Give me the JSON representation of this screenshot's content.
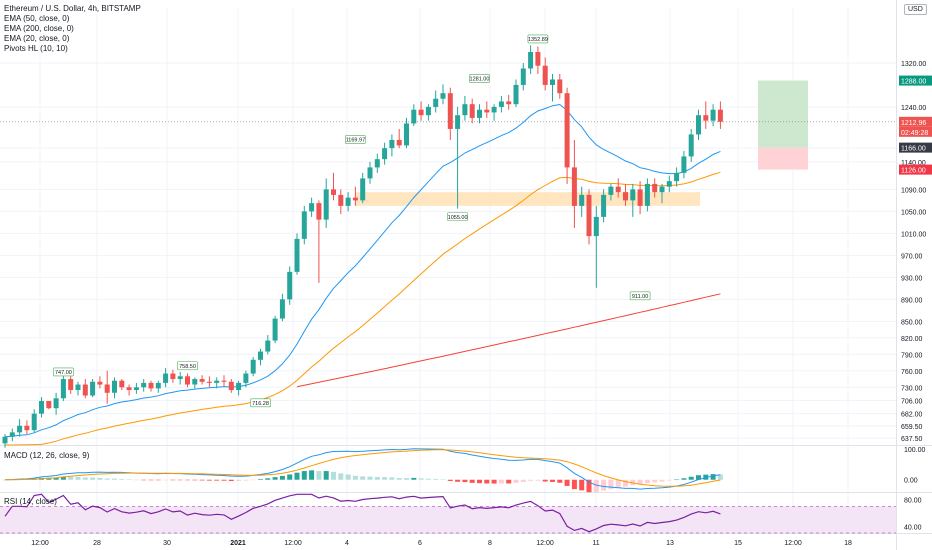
{
  "header": {
    "title": "Ethereum / U.S. Dollar, 4h, BITSTAMP",
    "indicators": [
      "EMA (50, close, 0)",
      "EMA (200, close, 0)",
      "EMA (20, close, 0)",
      "Pivots HL (10, 10)"
    ],
    "currency": "USD"
  },
  "panes": {
    "macd_title": "MACD (12, 26, close, 9)",
    "rsi_title": "RSI (14, close)"
  },
  "colors": {
    "up": "#26a69a",
    "down": "#ef5350",
    "ema20": "#2196f3",
    "ema50": "#ff9800",
    "ema200": "#f44336",
    "macd": "#2196f3",
    "signal": "#ff9800",
    "rsi": "#7b1fa2",
    "rsi_band": "#f3e5f5",
    "pivot_bg": "#ffffff",
    "target": "#c8e6c9",
    "stop": "#ffcdd2",
    "zone": "#ffe0b2"
  },
  "chart_data": {
    "type": "candlestick",
    "x_tick_labels": [
      "12:00",
      "28",
      "30",
      "2021",
      "12:00",
      "4",
      "6",
      "8",
      "12:00",
      "11",
      "13",
      "15",
      "12:00",
      "18"
    ],
    "y_tick_labels": [
      "1320.00",
      "1240.00",
      "1165.00",
      "1140.00",
      "1090.00",
      "1050.00",
      "1010.00",
      "970.00",
      "930.00",
      "890.00",
      "850.00",
      "820.00",
      "790.00",
      "760.00",
      "730.00",
      "706.00",
      "682.00",
      "659.50",
      "637.50"
    ],
    "ylim": [
      625,
      1420
    ],
    "price_labels": {
      "last": "1212.96",
      "countdown": "02:49:28",
      "target": "1288.00",
      "entry": "1166.00",
      "stop": "1126.00"
    },
    "pivot_labels": [
      {
        "label": "747.00",
        "value": 747
      },
      {
        "label": "758.50",
        "value": 758.5
      },
      {
        "label": "716.28",
        "value": 716.28
      },
      {
        "label": "1169.97",
        "value": 1169.97
      },
      {
        "label": "1281.00",
        "value": 1281
      },
      {
        "label": "1055.00",
        "value": 1055
      },
      {
        "label": "1352.89",
        "value": 1352.89
      },
      {
        "label": "911.00",
        "value": 911
      }
    ],
    "trade": {
      "target": 1288,
      "entry": 1166,
      "stop": 1126
    },
    "zone": {
      "low": 1060,
      "high": 1085
    },
    "candles": [
      [
        628,
        645,
        620,
        640
      ],
      [
        640,
        655,
        632,
        648
      ],
      [
        648,
        672,
        640,
        660
      ],
      [
        660,
        670,
        645,
        652
      ],
      [
        652,
        690,
        648,
        682
      ],
      [
        682,
        712,
        675,
        705
      ],
      [
        705,
        700,
        690,
        692
      ],
      [
        692,
        720,
        680,
        710
      ],
      [
        710,
        760,
        705,
        745
      ],
      [
        745,
        755,
        718,
        725
      ],
      [
        725,
        740,
        715,
        735
      ],
      [
        735,
        745,
        710,
        715
      ],
      [
        715,
        745,
        712,
        740
      ],
      [
        740,
        750,
        728,
        735
      ],
      [
        735,
        760,
        700,
        720
      ],
      [
        720,
        748,
        710,
        742
      ],
      [
        742,
        745,
        725,
        730
      ],
      [
        730,
        735,
        715,
        725
      ],
      [
        725,
        738,
        718,
        730
      ],
      [
        730,
        745,
        722,
        738
      ],
      [
        738,
        742,
        722,
        728
      ],
      [
        728,
        742,
        720,
        738
      ],
      [
        738,
        765,
        730,
        755
      ],
      [
        755,
        762,
        738,
        745
      ],
      [
        745,
        758,
        735,
        750
      ],
      [
        750,
        755,
        730,
        735
      ],
      [
        735,
        748,
        728,
        745
      ],
      [
        745,
        752,
        735,
        740
      ],
      [
        740,
        750,
        730,
        738
      ],
      [
        738,
        748,
        728,
        742
      ],
      [
        742,
        752,
        732,
        740
      ],
      [
        740,
        745,
        720,
        725
      ],
      [
        725,
        742,
        715,
        738
      ],
      [
        738,
        760,
        730,
        755
      ],
      [
        755,
        785,
        750,
        780
      ],
      [
        780,
        800,
        770,
        795
      ],
      [
        795,
        825,
        790,
        815
      ],
      [
        815,
        860,
        810,
        855
      ],
      [
        855,
        900,
        850,
        890
      ],
      [
        890,
        950,
        880,
        940
      ],
      [
        940,
        1010,
        935,
        1000
      ],
      [
        1000,
        1060,
        990,
        1050
      ],
      [
        1050,
        1075,
        1040,
        1065
      ],
      [
        1065,
        1070,
        920,
        1035
      ],
      [
        1035,
        1110,
        1020,
        1090
      ],
      [
        1090,
        1120,
        1070,
        1080
      ],
      [
        1080,
        1090,
        1045,
        1060
      ],
      [
        1060,
        1085,
        1050,
        1075
      ],
      [
        1075,
        1095,
        1060,
        1070
      ],
      [
        1070,
        1120,
        1065,
        1110
      ],
      [
        1110,
        1140,
        1100,
        1130
      ],
      [
        1130,
        1155,
        1120,
        1145
      ],
      [
        1145,
        1175,
        1135,
        1165
      ],
      [
        1165,
        1190,
        1150,
        1180
      ],
      [
        1180,
        1200,
        1165,
        1170
      ],
      [
        1170,
        1220,
        1165,
        1210
      ],
      [
        1210,
        1245,
        1205,
        1235
      ],
      [
        1235,
        1250,
        1215,
        1225
      ],
      [
        1225,
        1245,
        1215,
        1240
      ],
      [
        1240,
        1270,
        1230,
        1255
      ],
      [
        1255,
        1281,
        1245,
        1265
      ],
      [
        1265,
        1275,
        1180,
        1200
      ],
      [
        1200,
        1240,
        1055,
        1225
      ],
      [
        1225,
        1260,
        1215,
        1245
      ],
      [
        1245,
        1255,
        1210,
        1220
      ],
      [
        1220,
        1245,
        1210,
        1235
      ],
      [
        1235,
        1250,
        1220,
        1230
      ],
      [
        1230,
        1245,
        1215,
        1240
      ],
      [
        1240,
        1260,
        1230,
        1250
      ],
      [
        1250,
        1262,
        1235,
        1245
      ],
      [
        1245,
        1290,
        1240,
        1280
      ],
      [
        1280,
        1320,
        1270,
        1310
      ],
      [
        1310,
        1352,
        1300,
        1340
      ],
      [
        1340,
        1350,
        1300,
        1315
      ],
      [
        1315,
        1330,
        1270,
        1280
      ],
      [
        1280,
        1300,
        1250,
        1290
      ],
      [
        1290,
        1300,
        1255,
        1265
      ],
      [
        1265,
        1275,
        1100,
        1130
      ],
      [
        1130,
        1180,
        1020,
        1060
      ],
      [
        1060,
        1095,
        1040,
        1080
      ],
      [
        1080,
        1090,
        990,
        1005
      ],
      [
        1005,
        1060,
        911,
        1040
      ],
      [
        1040,
        1090,
        1030,
        1080
      ],
      [
        1080,
        1100,
        1070,
        1095
      ],
      [
        1095,
        1110,
        1075,
        1085
      ],
      [
        1085,
        1100,
        1060,
        1070
      ],
      [
        1070,
        1100,
        1040,
        1090
      ],
      [
        1090,
        1105,
        1045,
        1060
      ],
      [
        1060,
        1110,
        1050,
        1100
      ],
      [
        1100,
        1110,
        1075,
        1085
      ],
      [
        1085,
        1100,
        1065,
        1095
      ],
      [
        1095,
        1115,
        1085,
        1105
      ],
      [
        1105,
        1130,
        1095,
        1120
      ],
      [
        1120,
        1160,
        1110,
        1150
      ],
      [
        1150,
        1200,
        1140,
        1190
      ],
      [
        1190,
        1235,
        1180,
        1225
      ],
      [
        1225,
        1250,
        1200,
        1215
      ],
      [
        1215,
        1245,
        1205,
        1235
      ],
      [
        1235,
        1250,
        1200,
        1212.96
      ]
    ],
    "ema200_range": [
      637,
      900
    ],
    "macd": {
      "ylim": [
        -40,
        110
      ],
      "tick_labels": [
        "100.00",
        "0.00"
      ]
    },
    "rsi": {
      "ylim": [
        30,
        90
      ],
      "band": [
        30,
        70
      ],
      "tick_labels": [
        "80.00",
        "40.00"
      ]
    }
  }
}
